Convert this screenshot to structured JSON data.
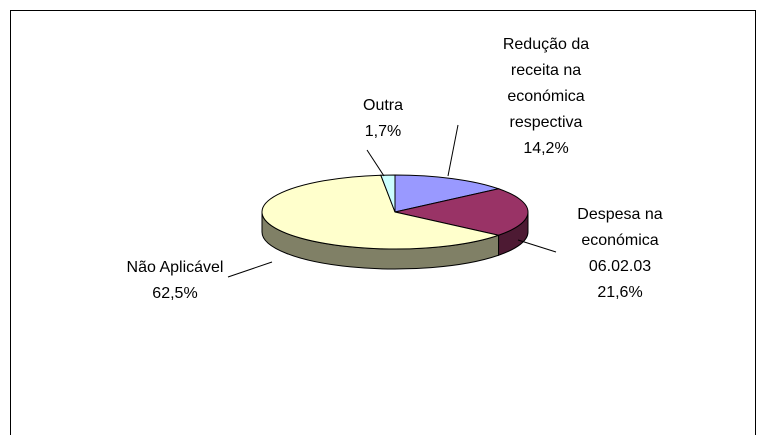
{
  "chart_data": {
    "type": "pie",
    "categories": [
      "Redução da receita na económica respectiva",
      "Despesa na económica 06.02.03",
      "Não Aplicável",
      "Outra"
    ],
    "values": [
      14.2,
      21.6,
      62.5,
      1.7
    ],
    "value_labels": [
      "14,2%",
      "21,6%",
      "62,5%",
      "1,7%"
    ],
    "colors": [
      "#9999ff",
      "#993366",
      "#ffffcc",
      "#ccffff"
    ]
  }
}
